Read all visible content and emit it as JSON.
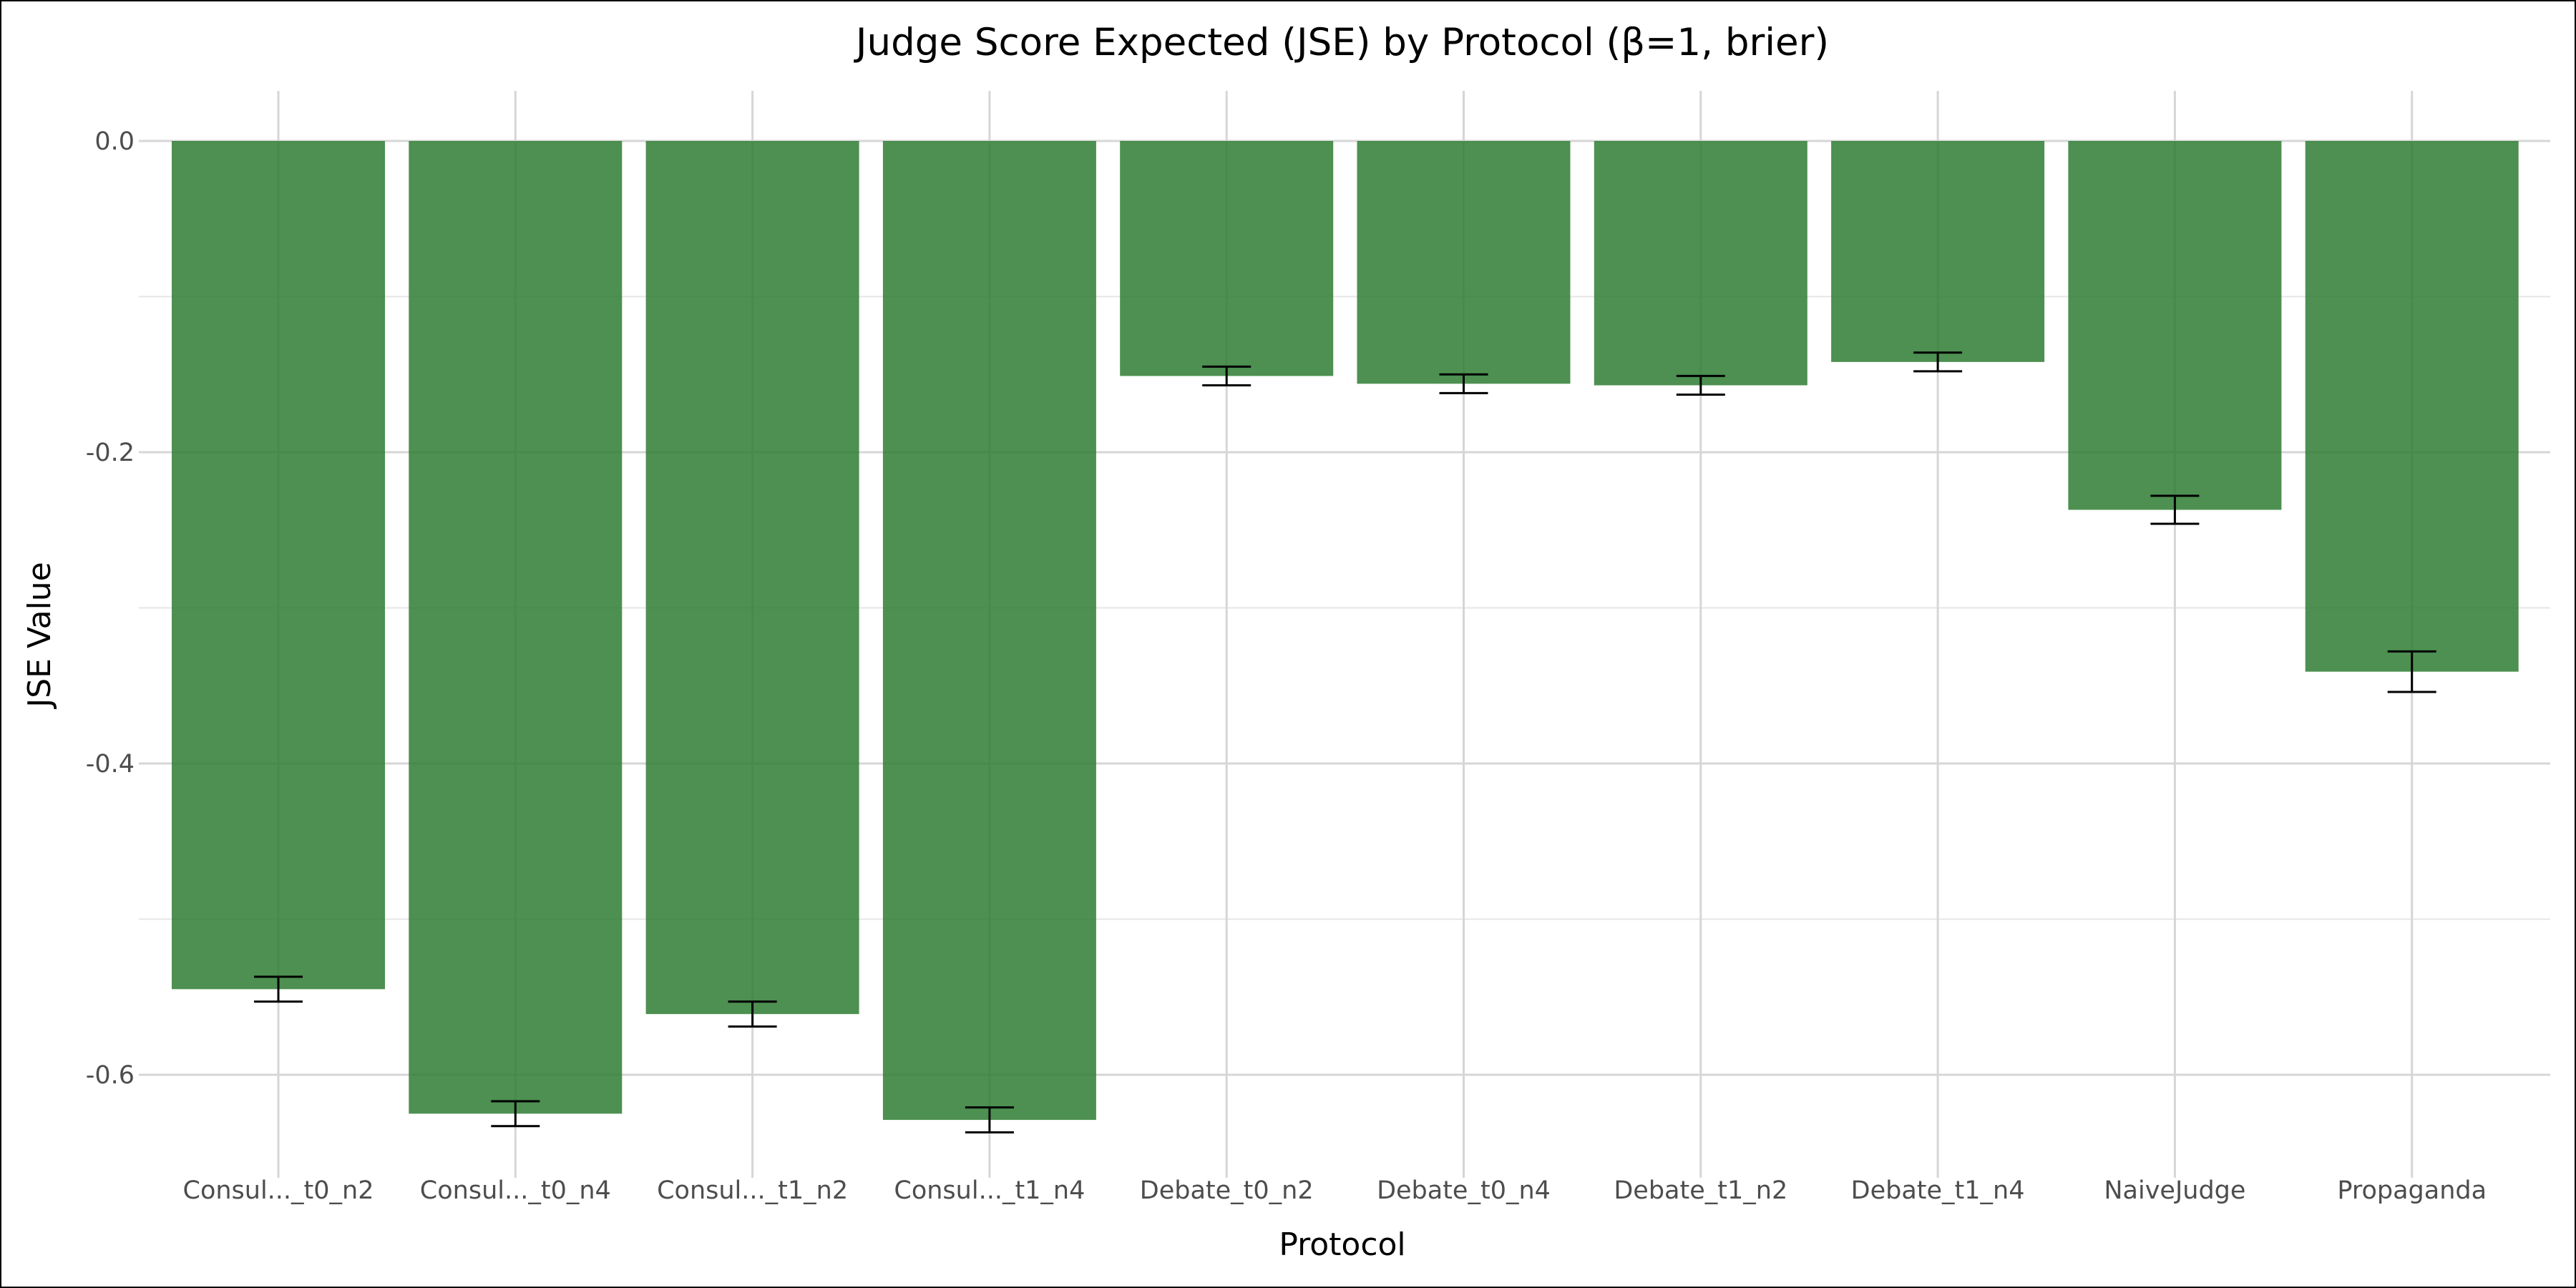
{
  "chart_data": {
    "type": "bar",
    "title": "Judge Score Expected (JSE) by Protocol (β=1, brier)",
    "xlabel": "Protocol",
    "ylabel": "JSE Value",
    "categories": [
      "Consul..._t0_n2",
      "Consul..._t0_n4",
      "Consul..._t1_n2",
      "Consul..._t1_n4",
      "Debate_t0_n2",
      "Debate_t0_n4",
      "Debate_t1_n2",
      "Debate_t1_n4",
      "NaiveJudge",
      "Propaganda"
    ],
    "values": [
      -0.545,
      -0.625,
      -0.561,
      -0.629,
      -0.151,
      -0.156,
      -0.157,
      -0.142,
      -0.237,
      -0.341
    ],
    "error_low": [
      -0.553,
      -0.633,
      -0.569,
      -0.637,
      -0.157,
      -0.162,
      -0.163,
      -0.148,
      -0.246,
      -0.354
    ],
    "error_high": [
      -0.537,
      -0.617,
      -0.553,
      -0.621,
      -0.145,
      -0.15,
      -0.151,
      -0.136,
      -0.228,
      -0.328
    ],
    "ylim": [
      -0.67,
      0.03
    ],
    "yticks": [
      0.0,
      -0.2,
      -0.4,
      -0.6
    ],
    "ytick_labels": [
      "0.0",
      "-0.2",
      "-0.4",
      "-0.6"
    ],
    "grid": true,
    "bar_color": "#2e7d32",
    "bar_opacity": 0.85
  }
}
